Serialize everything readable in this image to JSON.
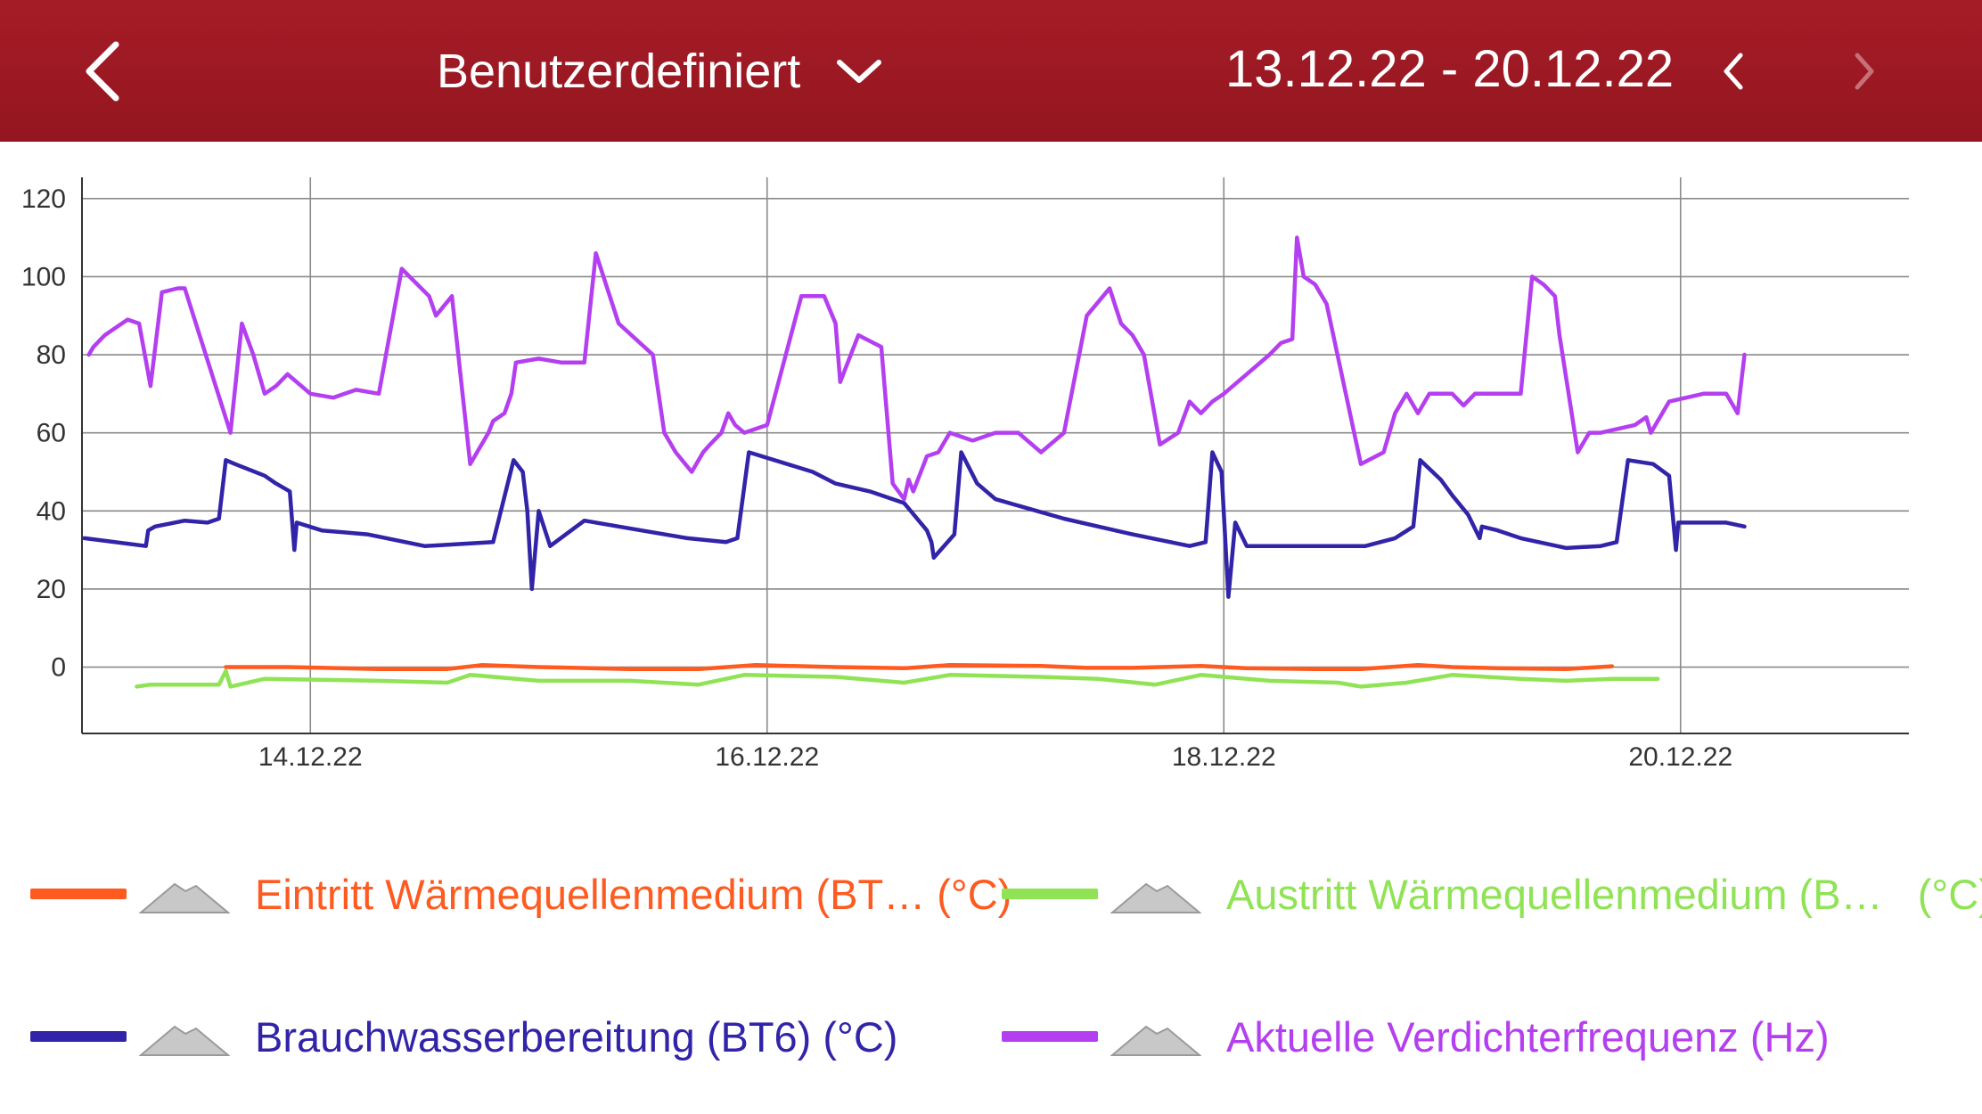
{
  "header": {
    "back_icon": "chevron-left-icon",
    "range_label": "Benutzerdefiniert",
    "range_dropdown_icon": "chevron-down-icon",
    "date_range": "13.12.22 - 20.12.22",
    "prev_icon": "chevron-left-icon",
    "next_icon": "chevron-right-icon"
  },
  "colors": {
    "header_bg": "#9e1a23",
    "orange": "#ff5a1f",
    "green": "#8fe354",
    "blue": "#3124a8",
    "purple": "#b43ff0"
  },
  "legend": [
    {
      "label": "Eintritt Wärmequellenmedium (BT…",
      "unit": "(°C)",
      "color": "#ff5a1f"
    },
    {
      "label": "Austritt Wärmequellenmedium (B…",
      "unit": "(°C)",
      "color": "#8fe354"
    },
    {
      "label": "Brauchwasserbereitung (BT6)",
      "unit": "(°C)",
      "color": "#3124a8"
    },
    {
      "label": "Aktuelle Verdichterfrequenz (Hz)",
      "unit": "",
      "color": "#b43ff0"
    }
  ],
  "chart_data": {
    "type": "line",
    "x_unit": "days",
    "xlim": [
      13.0,
      21.0
    ],
    "ylim": [
      -17,
      122
    ],
    "yticks": [
      120,
      100,
      80,
      60,
      40,
      20,
      0
    ],
    "xticks": [
      {
        "label": "14.12.22",
        "x": 14.0
      },
      {
        "label": "16.12.22",
        "x": 16.0
      },
      {
        "label": "18.12.22",
        "x": 18.0
      },
      {
        "label": "20.12.22",
        "x": 20.0
      }
    ],
    "grid": true,
    "legend_position": "bottom",
    "series": [
      {
        "name": "Eintritt Wärmequellenmedium (BT… (°C)",
        "color": "#ff5a1f",
        "x": [
          13.63,
          13.9,
          14.3,
          14.6,
          14.75,
          15.0,
          15.4,
          15.7,
          15.95,
          16.3,
          16.6,
          16.8,
          17.2,
          17.4,
          17.6,
          17.9,
          18.1,
          18.4,
          18.6,
          18.85,
          19.0,
          19.2,
          19.5,
          19.7
        ],
        "y": [
          0,
          0,
          -0.5,
          -0.5,
          0.5,
          0,
          -0.5,
          -0.5,
          0.5,
          0,
          -0.3,
          0.5,
          0.3,
          -0.2,
          -0.2,
          0.3,
          -0.3,
          -0.5,
          -0.5,
          0.5,
          0,
          -0.3,
          -0.5,
          0.2
        ]
      },
      {
        "name": "Austritt Wärmequellenmedium (B… (°C)",
        "color": "#8fe354",
        "x": [
          13.24,
          13.3,
          13.6,
          13.63,
          13.65,
          13.8,
          14.3,
          14.6,
          14.7,
          15.0,
          15.4,
          15.7,
          15.9,
          16.3,
          16.6,
          16.8,
          17.2,
          17.45,
          17.7,
          17.9,
          18.2,
          18.5,
          18.6,
          18.8,
          19.0,
          19.3,
          19.5,
          19.7,
          19.9
        ],
        "y": [
          -5,
          -4.5,
          -4.5,
          -1,
          -5,
          -3,
          -3.5,
          -4,
          -2,
          -3.5,
          -3.5,
          -4.5,
          -2,
          -2.5,
          -4,
          -2,
          -2.5,
          -3,
          -4.5,
          -2,
          -3.5,
          -4,
          -5,
          -4,
          -2,
          -3,
          -3.5,
          -3,
          -3
        ]
      },
      {
        "name": "Brauchwasserbereitung (BT6) (°C)",
        "color": "#3124a8",
        "x": [
          13.01,
          13.28,
          13.29,
          13.32,
          13.45,
          13.55,
          13.6,
          13.63,
          13.67,
          13.8,
          13.85,
          13.91,
          13.93,
          13.94,
          14.05,
          14.25,
          14.5,
          14.65,
          14.8,
          14.89,
          14.93,
          14.95,
          14.97,
          15.0,
          15.05,
          15.2,
          15.45,
          15.65,
          15.82,
          15.87,
          15.92,
          16.2,
          16.3,
          16.45,
          16.55,
          16.6,
          16.7,
          16.72,
          16.73,
          16.82,
          16.85,
          16.92,
          17.0,
          17.3,
          17.6,
          17.85,
          17.92,
          17.95,
          17.99,
          18.02,
          18.05,
          18.1,
          18.3,
          18.55,
          18.62,
          18.75,
          18.83,
          18.86,
          18.95,
          19.0,
          19.07,
          19.12,
          19.13,
          19.2,
          19.3,
          19.5,
          19.65,
          19.72,
          19.77,
          19.88,
          19.95,
          19.98,
          19.99,
          20.2,
          20.28
        ],
        "y": [
          33,
          31,
          35,
          36,
          37.5,
          37,
          38,
          53,
          52,
          49,
          47,
          45,
          30,
          37,
          35,
          34,
          31,
          31.5,
          32,
          53,
          50,
          40,
          20,
          40,
          31,
          37.5,
          35,
          33,
          32,
          33,
          55,
          50,
          47,
          45,
          43,
          42,
          35,
          32,
          28,
          34,
          55,
          47,
          43,
          38,
          34,
          31,
          32,
          55,
          50,
          18,
          37,
          31,
          31,
          31,
          31,
          33,
          36,
          53,
          48,
          44,
          39,
          33,
          36,
          35,
          33,
          30.5,
          31,
          32,
          53,
          52,
          49,
          30,
          37,
          37,
          36
        ]
      },
      {
        "name": "Aktuelle Verdichterfrequenz (Hz)",
        "color": "#b43ff0",
        "x": [
          13.03,
          13.05,
          13.1,
          13.15,
          13.2,
          13.25,
          13.3,
          13.35,
          13.42,
          13.45,
          13.65,
          13.7,
          13.75,
          13.8,
          13.85,
          13.9,
          14.0,
          14.1,
          14.2,
          14.3,
          14.4,
          14.52,
          14.55,
          14.62,
          14.7,
          14.78,
          14.8,
          14.85,
          14.88,
          14.9,
          15.0,
          15.1,
          15.2,
          15.25,
          15.35,
          15.5,
          15.55,
          15.6,
          15.67,
          15.72,
          15.75,
          15.8,
          15.83,
          15.86,
          15.9,
          16.0,
          16.15,
          16.25,
          16.3,
          16.32,
          16.4,
          16.5,
          16.55,
          16.6,
          16.62,
          16.64,
          16.7,
          16.75,
          16.8,
          16.9,
          17.0,
          17.1,
          17.2,
          17.3,
          17.4,
          17.5,
          17.55,
          17.6,
          17.65,
          17.72,
          17.8,
          17.85,
          17.9,
          17.95,
          18.0,
          18.1,
          18.2,
          18.25,
          18.3,
          18.32,
          18.35,
          18.4,
          18.45,
          18.6,
          18.7,
          18.75,
          18.8,
          18.85,
          18.9,
          18.95,
          19.0,
          19.05,
          19.1,
          19.2,
          19.3,
          19.35,
          19.4,
          19.45,
          19.47,
          19.55,
          19.6,
          19.65,
          19.8,
          19.85,
          19.87,
          19.95,
          20.1,
          20.2,
          20.25,
          20.28
        ],
        "y": [
          80,
          82,
          85,
          87,
          89,
          88,
          72,
          96,
          97,
          97,
          60,
          88,
          80,
          70,
          72,
          75,
          70,
          69,
          71,
          70,
          102,
          95,
          90,
          95,
          52,
          60,
          63,
          65,
          70,
          78,
          79,
          78,
          78,
          106,
          88,
          80,
          60,
          55,
          50,
          55,
          57,
          60,
          65,
          62,
          60,
          62,
          95,
          95,
          88,
          73,
          85,
          82,
          47,
          43,
          48,
          45,
          54,
          55,
          60,
          58,
          60,
          60,
          55,
          60,
          90,
          97,
          88,
          85,
          80,
          57,
          60,
          68,
          65,
          68,
          70,
          75,
          80,
          83,
          84,
          110,
          100,
          98,
          93,
          52,
          55,
          65,
          70,
          65,
          70,
          70,
          70,
          67,
          70,
          70,
          70,
          100,
          98,
          95,
          85,
          55,
          60,
          60,
          62,
          64,
          60,
          68,
          70,
          70,
          65,
          80
        ]
      }
    ]
  }
}
